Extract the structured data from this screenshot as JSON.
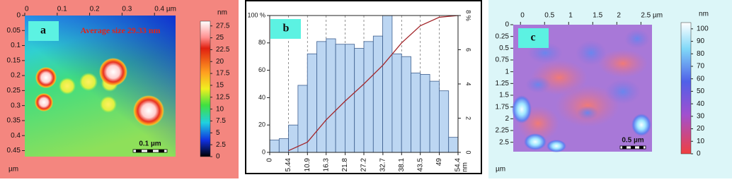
{
  "chart_data": [
    {
      "type": "afm",
      "label": "a",
      "annotation": "Average size 29.33 nm",
      "scale_bar": "0.1 µm",
      "colorbar_label": "nm",
      "axis_unit": "µm",
      "xlim": [
        0,
        0.465
      ],
      "ylim": [
        0,
        0.47
      ],
      "xticks": [
        0,
        0.1,
        0.2,
        0.3,
        {
          "value": 0.4,
          "label": "0.4 µm"
        }
      ],
      "yticks": [
        0,
        0.05,
        0.1,
        0.15,
        0.2,
        0.25,
        0.3,
        0.35,
        0.4,
        0.45
      ],
      "clim": [
        0,
        28.5
      ],
      "cticks": [
        0,
        2.5,
        5,
        7.5,
        10,
        12.5,
        15,
        17.5,
        20,
        22.5,
        25,
        27.5
      ]
    },
    {
      "type": "histogram",
      "label": "b",
      "x_label": "nm",
      "color": "#bcd6f2",
      "grid": true,
      "bins": [
        0,
        2.72,
        5.44,
        8.16,
        10.88,
        13.6,
        16.32,
        19.04,
        21.76,
        24.48,
        27.2,
        29.92,
        32.64,
        35.36,
        38.08,
        40.8,
        43.52,
        46.24,
        48.96,
        51.68,
        54.4
      ],
      "values": [
        9,
        10,
        20,
        49,
        72,
        81,
        83,
        79,
        79,
        76,
        81,
        85,
        100,
        72,
        70,
        58,
        57,
        52,
        45,
        11
      ],
      "xlim": [
        0,
        54.4
      ],
      "xticks": [
        0,
        5.44,
        10.9,
        16.3,
        21.8,
        27.2,
        32.7,
        38.1,
        43.5,
        49,
        54.4
      ],
      "ylim": [
        0,
        100
      ],
      "yticks": [
        0,
        20,
        40,
        60,
        80,
        {
          "value": 100,
          "label": "100 %"
        }
      ],
      "y2lim": [
        0,
        8
      ],
      "y2ticks": [
        0,
        2,
        4,
        6,
        {
          "value": 8,
          "label": "8 %"
        }
      ],
      "series": [
        {
          "color": "#a3262a",
          "axis": "y2",
          "x": [
            5.44,
            10.9,
            16.3,
            21.8,
            27.2,
            32.7,
            38.1,
            43.5,
            49,
            54.4
          ],
          "values": [
            0.1,
            0.6,
            1.9,
            3.0,
            4.0,
            5.1,
            6.4,
            7.4,
            7.9,
            8.0
          ]
        }
      ]
    },
    {
      "type": "afm",
      "label": "c",
      "scale_bar": "0.5 µm",
      "colorbar_label": "nm",
      "axis_unit": "µm",
      "xlim": [
        -0.15,
        2.73
      ],
      "ylim": [
        0,
        2.7
      ],
      "xticks": [
        0,
        0.5,
        1,
        1.5,
        2,
        {
          "value": 2.5,
          "label": "2.5 µm"
        }
      ],
      "yticks": [
        0,
        0.25,
        0.5,
        0.75,
        1,
        1.25,
        1.5,
        1.75,
        2,
        2.25,
        2.5
      ],
      "clim": [
        0,
        105
      ],
      "cticks": [
        0,
        10,
        20,
        30,
        40,
        50,
        60,
        70,
        80,
        90,
        100
      ]
    }
  ]
}
